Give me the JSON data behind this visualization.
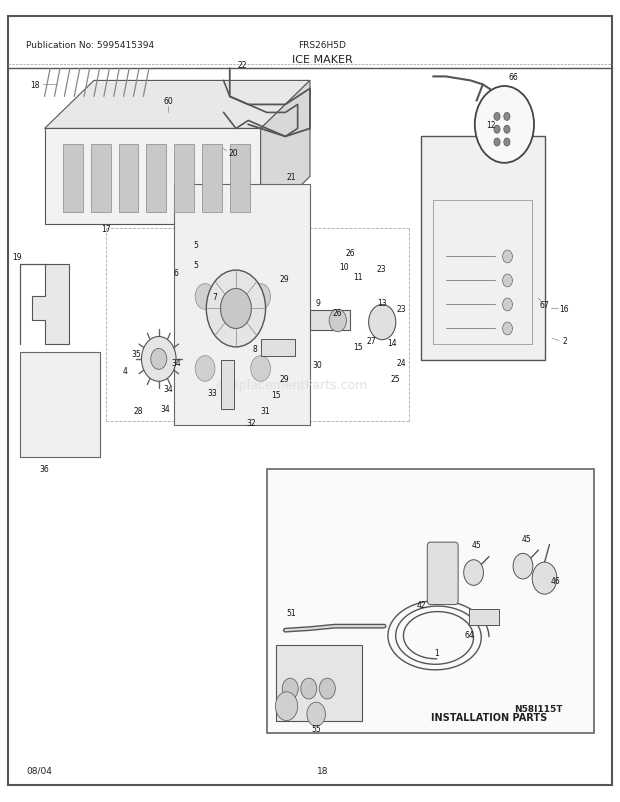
{
  "title": "ICE MAKER",
  "pub_no": "Publication No: 5995415394",
  "model": "FRS26H5D",
  "diagram_id": "N58I115T",
  "date": "08/04",
  "page": "18",
  "installation_parts_label": "INSTALLATION PARTS",
  "bg_color": "#ffffff",
  "border_color": "#333333",
  "text_color": "#222222",
  "light_gray": "#cccccc",
  "watermark": "eReplacementParts.com"
}
